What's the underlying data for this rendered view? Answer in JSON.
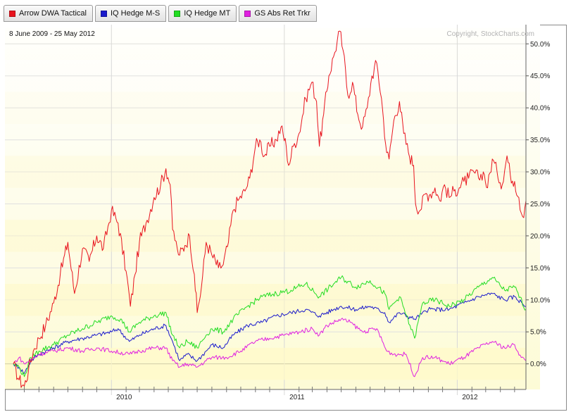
{
  "legend": [
    {
      "label": "Arrow DWA Tactical",
      "color": "#e8141e"
    },
    {
      "label": "IQ Hedge M-S",
      "color": "#1a1acc"
    },
    {
      "label": "IQ Hedge MT",
      "color": "#22dd22"
    },
    {
      "label": "GS Abs Ret  Trkr",
      "color": "#e020e0"
    }
  ],
  "chart_data": {
    "type": "line",
    "date_range": "8 June 2009 - 25 May 2012",
    "copyright": "Copyright, StockCharts.com",
    "y_axis": {
      "ticks": [
        "0.0%",
        "5.0%",
        "10.0%",
        "15.0%",
        "20.0%",
        "25.0%",
        "30.0%",
        "35.0%",
        "40.0%",
        "45.0%",
        "50.0%"
      ],
      "ylim": [
        -4,
        53
      ],
      "position": "right"
    },
    "x_axis": {
      "ticks": [
        "2010",
        "2011",
        "2012"
      ],
      "xlim": [
        "2009-06-08",
        "2012-05-25"
      ]
    },
    "grid": true,
    "series": [
      {
        "name": "Arrow DWA Tactical",
        "color": "#e8141e",
        "points": [
          [
            "2009-06-08",
            0.0
          ],
          [
            "2009-06-20",
            -2.5
          ],
          [
            "2009-07-01",
            -3.5
          ],
          [
            "2009-07-10",
            -1.0
          ],
          [
            "2009-07-20",
            2.0
          ],
          [
            "2009-08-01",
            4.0
          ],
          [
            "2009-08-15",
            6.0
          ],
          [
            "2009-09-01",
            9.5
          ],
          [
            "2009-09-15",
            14.0
          ],
          [
            "2009-10-01",
            19.0
          ],
          [
            "2009-10-15",
            11.0
          ],
          [
            "2009-11-01",
            18.0
          ],
          [
            "2009-11-15",
            16.0
          ],
          [
            "2009-12-01",
            20.0
          ],
          [
            "2009-12-15",
            18.0
          ],
          [
            "2010-01-01",
            24.0
          ],
          [
            "2010-01-15",
            22.0
          ],
          [
            "2010-02-01",
            14.5
          ],
          [
            "2010-02-10",
            9.0
          ],
          [
            "2010-02-20",
            14.0
          ],
          [
            "2010-03-01",
            19.0
          ],
          [
            "2010-03-15",
            22.0
          ],
          [
            "2010-04-01",
            26.0
          ],
          [
            "2010-04-15",
            28.0
          ],
          [
            "2010-04-26",
            30.5
          ],
          [
            "2010-05-05",
            28.0
          ],
          [
            "2010-05-10",
            21.0
          ],
          [
            "2010-05-20",
            18.0
          ],
          [
            "2010-05-25",
            17.0
          ],
          [
            "2010-06-05",
            18.5
          ],
          [
            "2010-06-15",
            20.0
          ],
          [
            "2010-06-25",
            14.0
          ],
          [
            "2010-07-01",
            8.0
          ],
          [
            "2010-07-10",
            12.0
          ],
          [
            "2010-07-20",
            19.0
          ],
          [
            "2010-08-01",
            17.0
          ],
          [
            "2010-08-15",
            15.0
          ],
          [
            "2010-08-25",
            15.5
          ],
          [
            "2010-09-05",
            19.0
          ],
          [
            "2010-09-15",
            24.0
          ],
          [
            "2010-09-25",
            25.5
          ],
          [
            "2010-10-10",
            27.0
          ],
          [
            "2010-10-20",
            29.0
          ],
          [
            "2010-11-01",
            34.0
          ],
          [
            "2010-11-10",
            35.0
          ],
          [
            "2010-11-20",
            32.5
          ],
          [
            "2010-12-01",
            34.0
          ],
          [
            "2010-12-15",
            35.0
          ],
          [
            "2010-12-25",
            37.0
          ],
          [
            "2011-01-05",
            34.0
          ],
          [
            "2011-01-10",
            31.0
          ],
          [
            "2011-01-20",
            34.0
          ],
          [
            "2011-02-01",
            36.0
          ],
          [
            "2011-02-15",
            41.5
          ],
          [
            "2011-02-28",
            44.0
          ],
          [
            "2011-03-10",
            41.0
          ],
          [
            "2011-03-16",
            34.0
          ],
          [
            "2011-03-25",
            39.0
          ],
          [
            "2011-04-05",
            45.0
          ],
          [
            "2011-04-15",
            48.0
          ],
          [
            "2011-04-28",
            52.0
          ],
          [
            "2011-05-05",
            49.0
          ],
          [
            "2011-05-15",
            42.0
          ],
          [
            "2011-05-25",
            44.0
          ],
          [
            "2011-06-05",
            39.0
          ],
          [
            "2011-06-15",
            37.0
          ],
          [
            "2011-06-25",
            40.0
          ],
          [
            "2011-07-05",
            45.0
          ],
          [
            "2011-07-15",
            47.0
          ],
          [
            "2011-07-25",
            41.5
          ],
          [
            "2011-08-05",
            33.0
          ],
          [
            "2011-08-10",
            32.0
          ],
          [
            "2011-08-20",
            38.0
          ],
          [
            "2011-09-01",
            41.0
          ],
          [
            "2011-09-10",
            36.0
          ],
          [
            "2011-09-20",
            33.0
          ],
          [
            "2011-10-01",
            31.0
          ],
          [
            "2011-10-05",
            25.0
          ],
          [
            "2011-10-15",
            24.0
          ],
          [
            "2011-10-25",
            26.5
          ],
          [
            "2011-11-05",
            26.5
          ],
          [
            "2011-11-15",
            27.5
          ],
          [
            "2011-11-25",
            25.5
          ],
          [
            "2011-12-05",
            28.0
          ],
          [
            "2011-12-15",
            26.0
          ],
          [
            "2011-12-25",
            27.0
          ],
          [
            "2012-01-05",
            27.5
          ],
          [
            "2012-01-15",
            28.5
          ],
          [
            "2012-01-25",
            29.0
          ],
          [
            "2012-02-05",
            30.0
          ],
          [
            "2012-02-15",
            29.0
          ],
          [
            "2012-02-25",
            30.0
          ],
          [
            "2012-03-05",
            27.5
          ],
          [
            "2012-03-15",
            32.0
          ],
          [
            "2012-03-25",
            30.0
          ],
          [
            "2012-04-05",
            28.0
          ],
          [
            "2012-04-15",
            32.5
          ],
          [
            "2012-04-22",
            29.5
          ],
          [
            "2012-05-01",
            28.5
          ],
          [
            "2012-05-10",
            26.0
          ],
          [
            "2012-05-18",
            23.0
          ],
          [
            "2012-05-25",
            25.5
          ]
        ]
      },
      {
        "name": "IQ Hedge M-S",
        "color": "#1a1acc",
        "points": [
          [
            "2009-06-08",
            0.0
          ],
          [
            "2009-06-20",
            -0.5
          ],
          [
            "2009-07-01",
            -1.5
          ],
          [
            "2009-07-15",
            0.5
          ],
          [
            "2009-08-01",
            1.5
          ],
          [
            "2009-09-01",
            2.5
          ],
          [
            "2009-10-01",
            3.5
          ],
          [
            "2009-11-01",
            4.0
          ],
          [
            "2009-12-01",
            4.5
          ],
          [
            "2010-01-01",
            5.0
          ],
          [
            "2010-01-15",
            5.5
          ],
          [
            "2010-02-08",
            3.5
          ],
          [
            "2010-03-01",
            4.5
          ],
          [
            "2010-04-01",
            5.5
          ],
          [
            "2010-04-26",
            6.0
          ],
          [
            "2010-05-10",
            3.5
          ],
          [
            "2010-05-25",
            0.5
          ],
          [
            "2010-06-10",
            1.5
          ],
          [
            "2010-07-01",
            0.5
          ],
          [
            "2010-07-20",
            2.0
          ],
          [
            "2010-08-01",
            3.0
          ],
          [
            "2010-08-25",
            2.5
          ],
          [
            "2010-09-15",
            4.5
          ],
          [
            "2010-10-15",
            6.0
          ],
          [
            "2010-11-15",
            6.5
          ],
          [
            "2010-12-15",
            7.5
          ],
          [
            "2011-01-15",
            8.0
          ],
          [
            "2011-02-15",
            8.5
          ],
          [
            "2011-03-16",
            7.5
          ],
          [
            "2011-04-15",
            8.5
          ],
          [
            "2011-05-01",
            9.0
          ],
          [
            "2011-06-01",
            8.5
          ],
          [
            "2011-07-01",
            9.0
          ],
          [
            "2011-08-01",
            8.0
          ],
          [
            "2011-08-10",
            6.5
          ],
          [
            "2011-09-01",
            8.0
          ],
          [
            "2011-10-03",
            7.0
          ],
          [
            "2011-11-01",
            8.5
          ],
          [
            "2011-12-15",
            8.5
          ],
          [
            "2012-01-15",
            9.5
          ],
          [
            "2012-02-15",
            10.5
          ],
          [
            "2012-03-15",
            11.0
          ],
          [
            "2012-04-10",
            10.0
          ],
          [
            "2012-05-01",
            10.5
          ],
          [
            "2012-05-25",
            9.0
          ]
        ]
      },
      {
        "name": "IQ Hedge MT",
        "color": "#22dd22",
        "points": [
          [
            "2009-06-08",
            0.0
          ],
          [
            "2009-06-20",
            -0.5
          ],
          [
            "2009-07-01",
            -2.0
          ],
          [
            "2009-07-15",
            1.0
          ],
          [
            "2009-08-01",
            2.0
          ],
          [
            "2009-09-01",
            3.0
          ],
          [
            "2009-10-01",
            4.5
          ],
          [
            "2009-11-01",
            5.5
          ],
          [
            "2009-12-01",
            6.5
          ],
          [
            "2010-01-01",
            7.5
          ],
          [
            "2010-01-20",
            7.0
          ],
          [
            "2010-02-08",
            5.0
          ],
          [
            "2010-03-01",
            6.5
          ],
          [
            "2010-04-01",
            7.5
          ],
          [
            "2010-04-26",
            8.0
          ],
          [
            "2010-05-10",
            4.5
          ],
          [
            "2010-05-25",
            2.5
          ],
          [
            "2010-06-10",
            3.5
          ],
          [
            "2010-07-01",
            2.5
          ],
          [
            "2010-07-20",
            4.5
          ],
          [
            "2010-08-01",
            5.5
          ],
          [
            "2010-08-25",
            5.0
          ],
          [
            "2010-09-15",
            7.0
          ],
          [
            "2010-10-15",
            9.0
          ],
          [
            "2010-11-15",
            10.5
          ],
          [
            "2010-12-15",
            11.0
          ],
          [
            "2011-01-15",
            11.5
          ],
          [
            "2011-02-15",
            12.5
          ],
          [
            "2011-03-16",
            10.5
          ],
          [
            "2011-04-15",
            12.5
          ],
          [
            "2011-05-01",
            13.5
          ],
          [
            "2011-06-01",
            12.0
          ],
          [
            "2011-07-01",
            13.0
          ],
          [
            "2011-08-01",
            11.0
          ],
          [
            "2011-08-10",
            8.5
          ],
          [
            "2011-09-01",
            10.5
          ],
          [
            "2011-10-03",
            4.0
          ],
          [
            "2011-10-20",
            9.5
          ],
          [
            "2011-11-15",
            10.0
          ],
          [
            "2011-12-15",
            9.0
          ],
          [
            "2012-01-15",
            10.0
          ],
          [
            "2012-02-15",
            12.0
          ],
          [
            "2012-03-15",
            13.5
          ],
          [
            "2012-04-10",
            11.5
          ],
          [
            "2012-05-01",
            12.0
          ],
          [
            "2012-05-25",
            8.5
          ]
        ]
      },
      {
        "name": "GS Abs Ret  Trkr",
        "color": "#e020e0",
        "points": [
          [
            "2009-06-08",
            0.0
          ],
          [
            "2009-06-20",
            1.0
          ],
          [
            "2009-07-01",
            0.0
          ],
          [
            "2009-08-01",
            1.5
          ],
          [
            "2009-09-01",
            2.0
          ],
          [
            "2009-10-01",
            2.5
          ],
          [
            "2009-11-01",
            2.0
          ],
          [
            "2009-12-01",
            2.5
          ],
          [
            "2010-01-01",
            2.0
          ],
          [
            "2010-02-08",
            1.5
          ],
          [
            "2010-03-01",
            2.0
          ],
          [
            "2010-04-01",
            2.5
          ],
          [
            "2010-04-26",
            2.5
          ],
          [
            "2010-05-10",
            0.5
          ],
          [
            "2010-05-25",
            -0.5
          ],
          [
            "2010-06-10",
            0.0
          ],
          [
            "2010-07-01",
            -0.5
          ],
          [
            "2010-07-20",
            0.5
          ],
          [
            "2010-08-01",
            1.0
          ],
          [
            "2010-09-01",
            1.0
          ],
          [
            "2010-10-01",
            2.0
          ],
          [
            "2010-11-01",
            3.5
          ],
          [
            "2010-12-01",
            4.0
          ],
          [
            "2011-01-01",
            4.5
          ],
          [
            "2011-02-01",
            5.0
          ],
          [
            "2011-03-01",
            5.5
          ],
          [
            "2011-03-16",
            4.5
          ],
          [
            "2011-04-01",
            6.0
          ],
          [
            "2011-05-01",
            7.0
          ],
          [
            "2011-05-20",
            6.5
          ],
          [
            "2011-06-15",
            5.0
          ],
          [
            "2011-07-15",
            5.5
          ],
          [
            "2011-08-05",
            2.0
          ],
          [
            "2011-08-20",
            1.5
          ],
          [
            "2011-09-15",
            1.5
          ],
          [
            "2011-10-03",
            -2.0
          ],
          [
            "2011-10-20",
            1.0
          ],
          [
            "2011-11-15",
            1.0
          ],
          [
            "2011-12-15",
            0.0
          ],
          [
            "2012-01-15",
            1.0
          ],
          [
            "2012-02-15",
            2.5
          ],
          [
            "2012-03-15",
            3.5
          ],
          [
            "2012-04-10",
            2.5
          ],
          [
            "2012-05-01",
            3.0
          ],
          [
            "2012-05-15",
            1.0
          ],
          [
            "2012-05-25",
            0.5
          ]
        ]
      }
    ]
  }
}
